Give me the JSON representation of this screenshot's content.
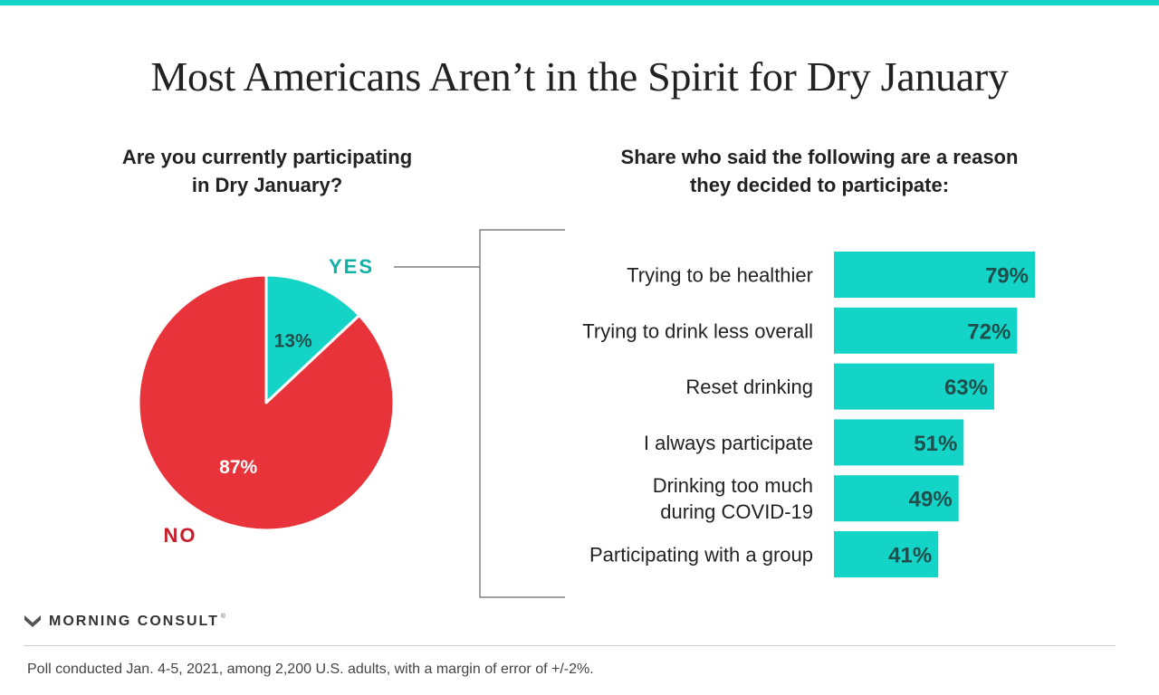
{
  "colors": {
    "accent": "#13d4c7",
    "no": "#e8333a",
    "no_label": "#c81e2b",
    "yes_label": "#12b1a6",
    "bar_text": "#1f4f4c",
    "ink": "#222222"
  },
  "header": {
    "title": "Most Americans Aren’t in the Spirit for Dry January"
  },
  "pie_panel": {
    "subtitle_line1": "Are you currently participating",
    "subtitle_line2": "in Dry January?"
  },
  "bar_panel": {
    "subtitle_line1": "Share who said the following are a reason",
    "subtitle_line2": "they decided to participate:"
  },
  "chart_data": [
    {
      "type": "pie",
      "title": "Are you currently participating in Dry January?",
      "slices": [
        {
          "name": "YES",
          "value": 13,
          "value_label": "13%",
          "color": "#13d4c7"
        },
        {
          "name": "NO",
          "value": 87,
          "value_label": "87%",
          "color": "#e8333a"
        }
      ]
    },
    {
      "type": "bar",
      "orientation": "horizontal",
      "title": "Share who said the following are a reason they decided to participate:",
      "categories": [
        [
          "Trying to be healthier"
        ],
        [
          "Trying to drink less overall"
        ],
        [
          "Reset drinking"
        ],
        [
          "I always participate"
        ],
        [
          "Drinking too much",
          "during COVID-19"
        ],
        [
          "Participating with a group"
        ]
      ],
      "values": [
        79,
        72,
        63,
        51,
        49,
        41
      ],
      "value_labels": [
        "79%",
        "72%",
        "63%",
        "51%",
        "49%",
        "41%"
      ],
      "color": "#13d4c7",
      "ylim": [
        0,
        100
      ]
    }
  ],
  "footer": {
    "brand": "MORNING CONSULT",
    "registered": "®",
    "note": "Poll conducted Jan. 4-5, 2021, among 2,200 U.S. adults, with a margin of error of +/-2%."
  }
}
